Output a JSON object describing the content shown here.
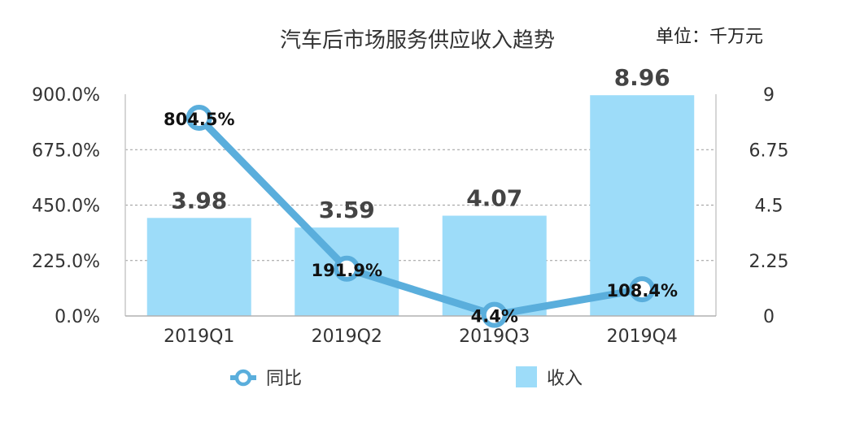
{
  "chart_data": {
    "type": "bar",
    "title": "汽车后市场服务供应收入趋势",
    "unit_note": "单位：千万元",
    "categories": [
      "2019Q1",
      "2019Q2",
      "2019Q3",
      "2019Q4"
    ],
    "series": [
      {
        "name": "收入",
        "type": "bar",
        "axis": "right",
        "values": [
          3.98,
          3.59,
          4.07,
          8.96
        ],
        "labels": [
          "3.98",
          "3.59",
          "4.07",
          "8.96"
        ],
        "color": "#9ddcf9"
      },
      {
        "name": "同比",
        "type": "line",
        "axis": "left",
        "values": [
          804.5,
          191.9,
          4.4,
          108.4
        ],
        "labels": [
          "804.5%",
          "191.9%",
          "4.4%",
          "108.4%"
        ],
        "color": "#5aaedc"
      }
    ],
    "y_left": {
      "ylim": [
        0,
        900
      ],
      "ticks": [
        "0.0%",
        "225.0%",
        "450.0%",
        "675.0%",
        "900.0%"
      ]
    },
    "y_right": {
      "ylim": [
        0,
        9
      ],
      "ticks": [
        "0",
        "2.25",
        "4.5",
        "6.75",
        "9"
      ]
    },
    "grid": true,
    "legend_position": "bottom"
  }
}
